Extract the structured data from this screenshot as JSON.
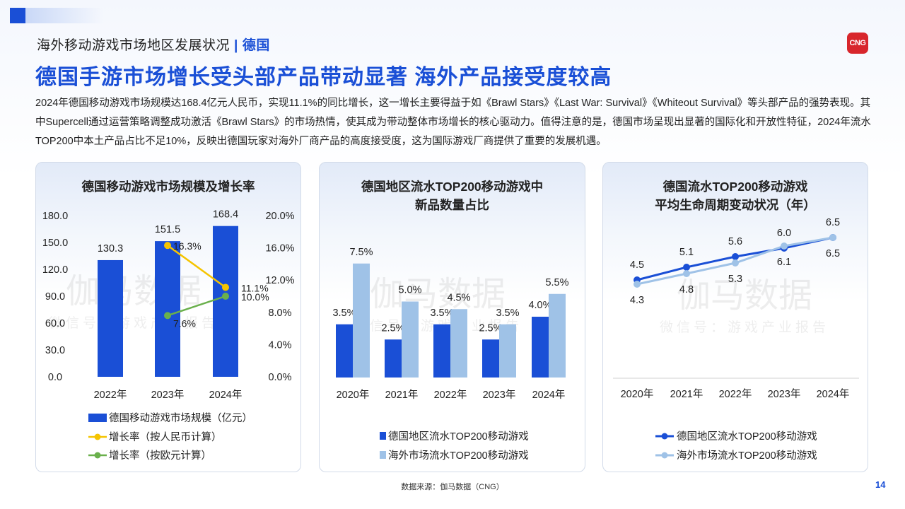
{
  "header": {
    "breadcrumb": "海外移动游戏市场地区发展状况",
    "separator": "|",
    "country": "德国",
    "logo_text": "CNG",
    "title": "德国手游市场增长受头部产品带动显著 海外产品接受度较高",
    "description": "2024年德国移动游戏市场规模达168.4亿元人民币，实现11.1%的同比增长，这一增长主要得益于如《Brawl Stars》《Last War: Survival》《Whiteout Survival》等头部产品的强势表现。其中Supercell通过运营策略调整成功激活《Brawl Stars》的市场热情，使其成为带动整体市场增长的核心驱动力。值得注意的是，德国市场呈现出显著的国际化和开放性特征，2024年流水TOP200中本土产品占比不足10%，反映出德国玩家对海外厂商产品的高度接受度，这为国际游戏厂商提供了重要的发展机遇。"
  },
  "watermark": {
    "main": "伽马数据",
    "sub": "微信号：游戏产业报告"
  },
  "colors": {
    "dark_blue": "#1a4fd6",
    "light_blue": "#9fc2e7",
    "yellow": "#f5c400",
    "green": "#6ab04c"
  },
  "chart_data": [
    {
      "type": "bar",
      "title": "德国移动游戏市场规模及增长率",
      "categories": [
        "2022年",
        "2023年",
        "2024年"
      ],
      "series": [
        {
          "name": "德国移动游戏市场规模（亿元）",
          "values": [
            130.3,
            151.5,
            168.4
          ],
          "labels": [
            "130.3",
            "151.5",
            "168.4"
          ],
          "axis": "left",
          "kind": "bar"
        },
        {
          "name": "增长率（按人民币计算）",
          "values": [
            null,
            16.3,
            11.1
          ],
          "labels": [
            "",
            "16.3%",
            "11.1%"
          ],
          "axis": "right",
          "kind": "line"
        },
        {
          "name": "增长率（按欧元计算）",
          "values": [
            null,
            7.6,
            10.0
          ],
          "labels": [
            "",
            "7.6%",
            "10.0%"
          ],
          "axis": "right",
          "kind": "line"
        }
      ],
      "ylim": [
        0,
        180
      ],
      "yticks": [
        "180.0",
        "150.0",
        "120.0",
        "90.0",
        "60.0",
        "30.0",
        "0.0"
      ],
      "y2lim": [
        0,
        20
      ],
      "y2ticks": [
        "20.0%",
        "16.0%",
        "12.0%",
        "8.0%",
        "4.0%",
        "0.0%"
      ],
      "legend": "bottom"
    },
    {
      "type": "bar",
      "title": "德国地区流水TOP200移动游戏中新品数量占比",
      "title_lines": [
        "德国地区流水TOP200移动游戏中",
        "新品数量占比"
      ],
      "categories": [
        "2020年",
        "2021年",
        "2022年",
        "2023年",
        "2024年"
      ],
      "series": [
        {
          "name": "德国地区流水TOP200移动游戏",
          "values": [
            3.5,
            2.5,
            3.5,
            2.5,
            4.0
          ],
          "labels": [
            "3.5%",
            "2.5%",
            "3.5%",
            "2.5%",
            "4.0%"
          ]
        },
        {
          "name": "海外市场流水TOP200移动游戏",
          "values": [
            7.5,
            5.0,
            4.5,
            3.5,
            5.5
          ],
          "labels": [
            "7.5%",
            "5.0%",
            "4.5%",
            "3.5%",
            "5.5%"
          ]
        }
      ],
      "legend": "bottom"
    },
    {
      "type": "line",
      "title": "德国流水TOP200移动游戏平均生命周期变动状况（年）",
      "title_lines": [
        "德国流水TOP200移动游戏",
        "平均生命周期变动状况（年）"
      ],
      "categories": [
        "2020年",
        "2021年",
        "2022年",
        "2023年",
        "2024年"
      ],
      "series": [
        {
          "name": "德国地区流水TOP200移动游戏",
          "values": [
            4.5,
            5.1,
            5.6,
            6.0,
            6.5
          ],
          "labels": [
            "4.5",
            "5.1",
            "5.6",
            "6.0",
            "6.5"
          ]
        },
        {
          "name": "海外市场流水TOP200移动游戏",
          "values": [
            4.3,
            4.8,
            5.3,
            6.1,
            6.5
          ],
          "labels": [
            "4.3",
            "4.8",
            "5.3",
            "6.1",
            "6.5"
          ]
        }
      ],
      "legend": "bottom"
    }
  ],
  "footer": {
    "source": "数据来源：伽马数据（CNG）",
    "page": "14"
  }
}
